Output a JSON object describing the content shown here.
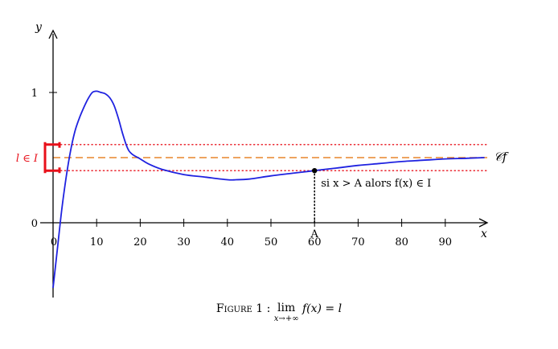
{
  "chart_data": {
    "type": "line",
    "xlabel": "x",
    "ylabel": "y",
    "xlim": [
      0,
      99
    ],
    "ylim": [
      -0.5,
      1.5
    ],
    "x_ticks": [
      0,
      10,
      20,
      30,
      40,
      50,
      60,
      70,
      80,
      90
    ],
    "x_tick_labels": [
      "0",
      "10",
      "20",
      "30",
      "40",
      "50",
      "60",
      "70",
      "80",
      "90"
    ],
    "y_ticks": [
      0,
      1
    ],
    "y_tick_labels": [
      "0",
      "1"
    ],
    "grid": false,
    "limit_value": 0.5,
    "interval_bounds": [
      0.4,
      0.6
    ],
    "limit_label": "l ∈ I",
    "curve_label": "𝒞f",
    "threshold_x": 60,
    "threshold_point_y": 0.4,
    "threshold_tick_label": "A",
    "annotation": "si x > A alors f(x) ∈ I",
    "series": [
      {
        "points": [
          [
            0,
            -0.5
          ],
          [
            1,
            -0.2
          ],
          [
            2,
            0.1
          ],
          [
            3,
            0.35
          ],
          [
            4,
            0.55
          ],
          [
            5,
            0.7
          ],
          [
            6,
            0.8
          ],
          [
            7,
            0.88
          ],
          [
            8,
            0.95
          ],
          [
            9,
            1.0
          ],
          [
            10,
            1.01
          ],
          [
            11,
            1.0
          ],
          [
            12,
            0.99
          ],
          [
            13,
            0.96
          ],
          [
            14,
            0.9
          ],
          [
            15,
            0.8
          ],
          [
            16,
            0.68
          ],
          [
            17,
            0.58
          ],
          [
            18,
            0.53
          ],
          [
            20,
            0.49
          ],
          [
            22,
            0.45
          ],
          [
            25,
            0.41
          ],
          [
            30,
            0.37
          ],
          [
            35,
            0.35
          ],
          [
            40,
            0.33
          ],
          [
            42,
            0.33
          ],
          [
            45,
            0.335
          ],
          [
            50,
            0.36
          ],
          [
            55,
            0.38
          ],
          [
            60,
            0.4
          ],
          [
            65,
            0.42
          ],
          [
            70,
            0.44
          ],
          [
            75,
            0.455
          ],
          [
            80,
            0.47
          ],
          [
            85,
            0.48
          ],
          [
            90,
            0.49
          ],
          [
            95,
            0.495
          ],
          [
            99,
            0.5
          ]
        ]
      }
    ]
  },
  "caption": {
    "label": "Figure 1 :",
    "lim": "lim",
    "lim_sub": "x→+∞",
    "expr": "f(x) = l"
  },
  "colors": {
    "curve": "#1f22e0",
    "limit_line": "#e8862b",
    "interval_lines": "#e8101a",
    "interval_bracket": "#e8101a",
    "axis": "#000000"
  }
}
